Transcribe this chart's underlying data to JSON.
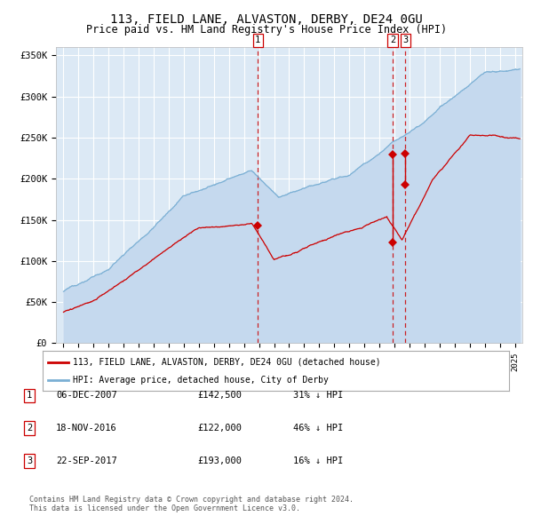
{
  "title": "113, FIELD LANE, ALVASTON, DERBY, DE24 0GU",
  "subtitle": "Price paid vs. HM Land Registry's House Price Index (HPI)",
  "legend_line1": "113, FIELD LANE, ALVASTON, DERBY, DE24 0GU (detached house)",
  "legend_line2": "HPI: Average price, detached house, City of Derby",
  "footnote1": "Contains HM Land Registry data © Crown copyright and database right 2024.",
  "footnote2": "This data is licensed under the Open Government Licence v3.0.",
  "transactions": [
    {
      "id": 1,
      "date": "06-DEC-2007",
      "price": 142500,
      "pct": "31%",
      "dir": "↓"
    },
    {
      "id": 2,
      "date": "18-NOV-2016",
      "price": 122000,
      "pct": "46%",
      "dir": "↓"
    },
    {
      "id": 3,
      "date": "22-SEP-2017",
      "price": 193000,
      "pct": "16%",
      "dir": "↓"
    }
  ],
  "t_years": [
    2007.92,
    2016.88,
    2017.72
  ],
  "t_red_prices": [
    142500,
    122000,
    193000
  ],
  "t_hpi_prices": [
    206000,
    229000,
    230000
  ],
  "ylim": [
    0,
    360000
  ],
  "yticks": [
    0,
    50000,
    100000,
    150000,
    200000,
    250000,
    300000,
    350000
  ],
  "xlim": [
    1994.5,
    2025.5
  ],
  "bg_color": "#dce9f5",
  "red_line_color": "#cc0000",
  "blue_line_color": "#7aafd4",
  "blue_fill_color": "#c5d9ee",
  "grid_color": "#ffffff",
  "dashed_color": "#cc0000",
  "title_fontsize": 10,
  "subtitle_fontsize": 8.5
}
